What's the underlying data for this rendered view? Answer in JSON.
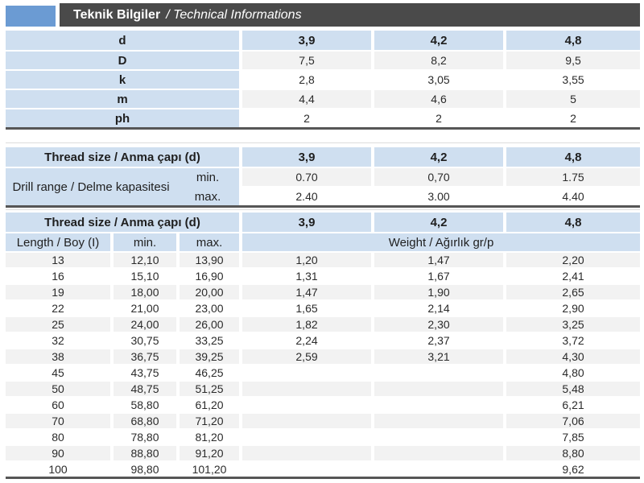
{
  "colors": {
    "accent_blue": "#6b9bd3",
    "header_bar": "#4a4a4a",
    "cell_blue": "#cfdff0",
    "row_gray": "#f2f2f2",
    "table_rule": "#565656"
  },
  "header": {
    "title_tr": "Teknik Bilgiler",
    "title_en": "/ Technical Informations"
  },
  "dimensions_table": {
    "header": {
      "label": "d",
      "values": [
        "3,9",
        "4,2",
        "4,8"
      ]
    },
    "rows": [
      {
        "label": "D",
        "values": [
          "7,5",
          "8,2",
          "9,5"
        ]
      },
      {
        "label": "k",
        "values": [
          "2,8",
          "3,05",
          "3,55"
        ]
      },
      {
        "label": "m",
        "values": [
          "4,4",
          "4,6",
          "5"
        ]
      },
      {
        "label": "ph",
        "values": [
          "2",
          "2",
          "2"
        ]
      }
    ]
  },
  "drill_table": {
    "header": {
      "label": "Thread size / Anma çapı (d)",
      "values": [
        "3,9",
        "4,2",
        "4,8"
      ]
    },
    "range_label": "Drill range / Delme kapasitesi",
    "rows": [
      {
        "sub_label": "min.",
        "values": [
          "0.70",
          "0,70",
          "1.75"
        ]
      },
      {
        "sub_label": "max.",
        "values": [
          "2.40",
          "3.00",
          "4.40"
        ]
      }
    ]
  },
  "length_table": {
    "header": {
      "label": "Thread size / Anma çapı (d)",
      "values": [
        "3,9",
        "4,2",
        "4,8"
      ]
    },
    "columns": {
      "length": "Length / Boy (I)",
      "min": "min.",
      "max": "max.",
      "weight": "Weight / Ağırlık gr/p"
    },
    "rows": [
      [
        "13",
        "12,10",
        "13,90",
        "1,20",
        "1,47",
        "2,20"
      ],
      [
        "16",
        "15,10",
        "16,90",
        "1,31",
        "1,67",
        "2,41"
      ],
      [
        "19",
        "18,00",
        "20,00",
        "1,47",
        "1,90",
        "2,65"
      ],
      [
        "22",
        "21,00",
        "23,00",
        "1,65",
        "2,14",
        "2,90"
      ],
      [
        "25",
        "24,00",
        "26,00",
        "1,82",
        "2,30",
        "3,25"
      ],
      [
        "32",
        "30,75",
        "33,25",
        "2,24",
        "2,37",
        "3,72"
      ],
      [
        "38",
        "36,75",
        "39,25",
        "2,59",
        "3,21",
        "4,30"
      ],
      [
        "45",
        "43,75",
        "46,25",
        "",
        "",
        "4,80"
      ],
      [
        "50",
        "48,75",
        "51,25",
        "",
        "",
        "5,48"
      ],
      [
        "60",
        "58,80",
        "61,20",
        "",
        "",
        "6,21"
      ],
      [
        "70",
        "68,80",
        "71,20",
        "",
        "",
        "7,06"
      ],
      [
        "80",
        "78,80",
        "81,20",
        "",
        "",
        "7,85"
      ],
      [
        "90",
        "88,80",
        "91,20",
        "",
        "",
        "8,80"
      ],
      [
        "100",
        "98,80",
        "101,20",
        "",
        "",
        "9,62"
      ]
    ]
  }
}
